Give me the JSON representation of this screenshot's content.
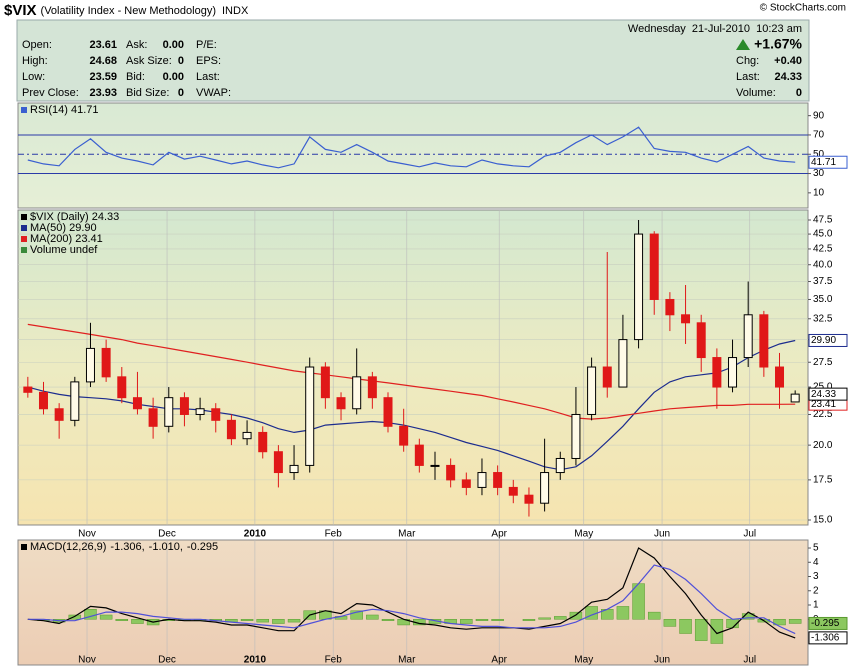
{
  "header": {
    "symbol": "$VIX",
    "name": "(Volatility Index - New Methodology)",
    "exchange": "INDX",
    "watermark": "© StockCharts.com",
    "datetime": "Wednesday  21-Jul-2010  10:23 am",
    "quote": [
      [
        "Open:",
        "23.61",
        "Ask:",
        "0.00",
        "P/E:"
      ],
      [
        "High:",
        "24.68",
        "Ask Size:",
        "0",
        "EPS:"
      ],
      [
        "Low:",
        "23.59",
        "Bid:",
        "0.00",
        "Last:"
      ],
      [
        "Prev Close:",
        "23.93",
        "Bid Size:",
        "0",
        "VWAP:"
      ]
    ],
    "change_pct": "+1.67%",
    "right": [
      [
        "Chg:",
        "+0.40"
      ],
      [
        "Last:",
        "24.33"
      ],
      [
        "Volume:",
        "0"
      ]
    ]
  },
  "chart_data": [
    {
      "type": "line",
      "label": "RSI(14) 41.71",
      "ylim": [
        0,
        100
      ],
      "yticks": [
        10,
        30,
        50,
        70,
        90
      ],
      "reference_lines": [
        30,
        50,
        70
      ],
      "reference_color": "#2a3aa8",
      "series": [
        {
          "color": "#3a5fd0",
          "tag": "41.71",
          "values": [
            44,
            40,
            38,
            55,
            66,
            52,
            46,
            43,
            39,
            52,
            45,
            48,
            44,
            40,
            43,
            39,
            36,
            40,
            68,
            55,
            52,
            60,
            52,
            43,
            40,
            37,
            41,
            38,
            37,
            44,
            40,
            38,
            37,
            48,
            52,
            62,
            70,
            60,
            68,
            78,
            56,
            53,
            52,
            46,
            42,
            50,
            58,
            46,
            43,
            41.71
          ]
        }
      ]
    },
    {
      "type": "candlestick",
      "label": "$VIX (Daily) 24.33",
      "volume_label": "Volume undef",
      "tag": "24.33",
      "log_scale": true,
      "ylim": [
        15,
        47.5
      ],
      "grid": true,
      "up_color": "#000000",
      "down_color": "#e01818",
      "yticks": [
        {
          "value": 15,
          "label": "15.0"
        },
        17.5,
        {
          "value": 20,
          "label": "20.0"
        },
        22.5,
        {
          "value": 25,
          "label": "25.0"
        },
        27.5,
        {
          "value": 30,
          "label": "30.0"
        },
        32.5,
        {
          "value": 35,
          "label": "35.0"
        },
        37.5,
        {
          "value": 40,
          "label": "40.0"
        },
        42.5,
        {
          "value": 45,
          "label": "45.0"
        },
        47.5
      ],
      "xticks": [
        {
          "value": 3.78,
          "label": "Nov"
        },
        {
          "value": 8.89,
          "label": "Dec"
        },
        {
          "value": 14.5,
          "label": "2010"
        },
        {
          "value": 19.5,
          "label": "Feb"
        },
        {
          "value": 24.2,
          "label": "Mar"
        },
        {
          "value": 30.1,
          "label": "Apr"
        },
        {
          "value": 35.5,
          "label": "May"
        },
        {
          "value": 40.5,
          "label": "Jun"
        },
        {
          "value": 46.1,
          "label": "Jul"
        }
      ],
      "open": [
        25,
        24.5,
        23,
        22,
        25.5,
        29,
        26,
        24,
        23,
        21.5,
        24,
        22.5,
        23,
        22,
        20.5,
        21,
        19.5,
        18,
        18.5,
        27,
        24,
        23,
        26,
        24,
        21.5,
        20,
        18.5,
        18.5,
        17.5,
        17,
        18,
        17,
        16.5,
        16,
        18,
        19,
        22.5,
        27,
        25,
        30,
        45,
        35,
        33,
        32,
        28,
        25,
        28,
        33,
        27,
        23.61
      ],
      "high": [
        26,
        25.5,
        23.5,
        26,
        32,
        30,
        27,
        26.5,
        24,
        25,
        24.5,
        24,
        23.5,
        22.5,
        22,
        21.5,
        20,
        20,
        28,
        27.5,
        24.5,
        29,
        26.5,
        24.5,
        23,
        20.5,
        19.5,
        19,
        18,
        19,
        18.5,
        17.5,
        17,
        20.5,
        19.5,
        25,
        28,
        42,
        33,
        47.5,
        45.5,
        36,
        37,
        33,
        29,
        30,
        37.5,
        33.5,
        28.5,
        24.68
      ],
      "low": [
        24,
        22.5,
        20.5,
        21.5,
        25,
        25.5,
        23.5,
        22.5,
        20.5,
        21,
        21.5,
        22,
        21,
        20,
        20,
        19,
        17,
        17.5,
        18,
        23,
        22,
        22.5,
        23,
        21,
        19.5,
        18,
        17.5,
        17,
        16.5,
        16.5,
        16.5,
        16,
        15.2,
        15.5,
        17.5,
        18.5,
        22,
        24,
        25,
        29,
        33,
        31,
        29.5,
        26.5,
        23,
        24.5,
        27,
        26,
        23,
        23.59
      ],
      "close": [
        24.5,
        23,
        22,
        25.5,
        29,
        26,
        24,
        23,
        21.5,
        24,
        22.5,
        23,
        22,
        20.5,
        21,
        19.5,
        18,
        18.5,
        27,
        24,
        23,
        26,
        24,
        21.5,
        20,
        18.5,
        18.5,
        17.5,
        17,
        18,
        17,
        16.5,
        16,
        18,
        19,
        22.5,
        27,
        25,
        30,
        45,
        35,
        33,
        32,
        28,
        25,
        28,
        33,
        27,
        25,
        24.33
      ],
      "series": [
        {
          "name": "MA(50) 29.90",
          "color": "#1c2c8e",
          "tag": "29.90",
          "values": [
            25,
            24.6,
            24.3,
            24.1,
            24,
            23.9,
            23.7,
            23.4,
            23.2,
            23,
            23,
            22.9,
            22.7,
            22.5,
            22.2,
            21.8,
            21.3,
            21,
            21.2,
            21.6,
            21.7,
            21.8,
            21.9,
            21.8,
            21.6,
            21.3,
            21,
            20.6,
            20.2,
            19.9,
            19.6,
            19.2,
            18.8,
            18.4,
            18.2,
            18.4,
            19.2,
            20.3,
            21.5,
            23,
            24.5,
            25.5,
            26,
            26.2,
            26.4,
            27,
            28,
            28.8,
            29.5,
            29.9
          ]
        },
        {
          "name": "MA(200) 23.41",
          "color": "#e02020",
          "tag": "23.41",
          "values": [
            31.8,
            31.5,
            31.2,
            30.9,
            30.6,
            30.3,
            30,
            29.6,
            29.3,
            29,
            28.7,
            28.4,
            28.1,
            27.8,
            27.5,
            27.2,
            26.9,
            26.6,
            26.4,
            26.2,
            26,
            25.8,
            25.6,
            25.4,
            25.2,
            25,
            24.8,
            24.6,
            24.4,
            24.2,
            23.9,
            23.6,
            23.3,
            23,
            22.6,
            22.2,
            22.1,
            22.2,
            22.4,
            22.6,
            22.8,
            23,
            23.1,
            23.2,
            23.3,
            23.3,
            23.4,
            23.4,
            23.4,
            23.41
          ]
        }
      ]
    },
    {
      "type": "combo",
      "label": "MACD(12,26,9)",
      "ylim": [
        -3.2,
        5.5
      ],
      "yticks": [
        0,
        1,
        2,
        3,
        4,
        5
      ],
      "xticks": [
        {
          "value": 3.78,
          "label": "Nov"
        },
        {
          "value": 8.89,
          "label": "Dec"
        },
        {
          "value": 14.5,
          "label": "2010"
        },
        {
          "value": 19.5,
          "label": "Feb"
        },
        {
          "value": 24.2,
          "label": "Mar"
        },
        {
          "value": 30.1,
          "label": "Apr"
        },
        {
          "value": 35.5,
          "label": "May"
        },
        {
          "value": 40.5,
          "label": "Jun"
        },
        {
          "value": 46.1,
          "label": "Jul"
        }
      ],
      "series": [
        {
          "name": "-1.306,",
          "kind": "line",
          "color": "#000000",
          "tag": "-1.306",
          "values": [
            0,
            -0.1,
            -0.3,
            0.2,
            0.9,
            0.8,
            0.4,
            0.1,
            -0.2,
            0,
            -0.1,
            -0.1,
            -0.2,
            -0.4,
            -0.4,
            -0.6,
            -0.8,
            -0.8,
            0.3,
            0.6,
            0.4,
            1.1,
            1,
            0.5,
            0,
            -0.3,
            -0.4,
            -0.6,
            -0.7,
            -0.6,
            -0.6,
            -0.6,
            -0.7,
            -0.5,
            -0.3,
            0.3,
            1.2,
            1.4,
            2.2,
            5.0,
            4.3,
            3.0,
            1.8,
            0.3,
            -1.0,
            -0.6,
            0.5,
            -0.1,
            -0.9,
            -1.306
          ]
        },
        {
          "name": "-1.010,",
          "kind": "line",
          "color": "#5050d8",
          "values": [
            0,
            0,
            -0.1,
            -0.1,
            0.2,
            0.5,
            0.5,
            0.4,
            0.2,
            0.1,
            0,
            0,
            -0.1,
            -0.2,
            -0.3,
            -0.4,
            -0.5,
            -0.6,
            -0.3,
            0,
            0.2,
            0.5,
            0.7,
            0.6,
            0.4,
            0.1,
            -0.1,
            -0.3,
            -0.4,
            -0.5,
            -0.5,
            -0.6,
            -0.6,
            -0.6,
            -0.5,
            -0.2,
            0.3,
            0.7,
            1.3,
            2.5,
            3.8,
            3.5,
            2.8,
            1.8,
            0.7,
            0,
            0.1,
            0.1,
            -0.5,
            -1.01
          ]
        },
        {
          "name": "-0.295",
          "kind": "bar",
          "color": "#8cc860",
          "tag": "-0.295",
          "values": [
            0,
            -0.1,
            -0.2,
            0.3,
            0.7,
            0.3,
            -0.1,
            -0.3,
            -0.4,
            -0.1,
            -0.1,
            -0.1,
            -0.1,
            -0.2,
            -0.1,
            -0.2,
            -0.3,
            -0.2,
            0.6,
            0.6,
            0.2,
            0.6,
            0.3,
            -0.1,
            -0.4,
            -0.4,
            -0.3,
            -0.3,
            -0.3,
            -0.1,
            -0.1,
            0,
            -0.1,
            0.1,
            0.2,
            0.5,
            0.9,
            0.7,
            0.9,
            2.5,
            0.5,
            -0.5,
            -1.0,
            -1.5,
            -1.7,
            -0.6,
            0.4,
            -0.2,
            -0.4,
            -0.295
          ]
        }
      ]
    }
  ]
}
